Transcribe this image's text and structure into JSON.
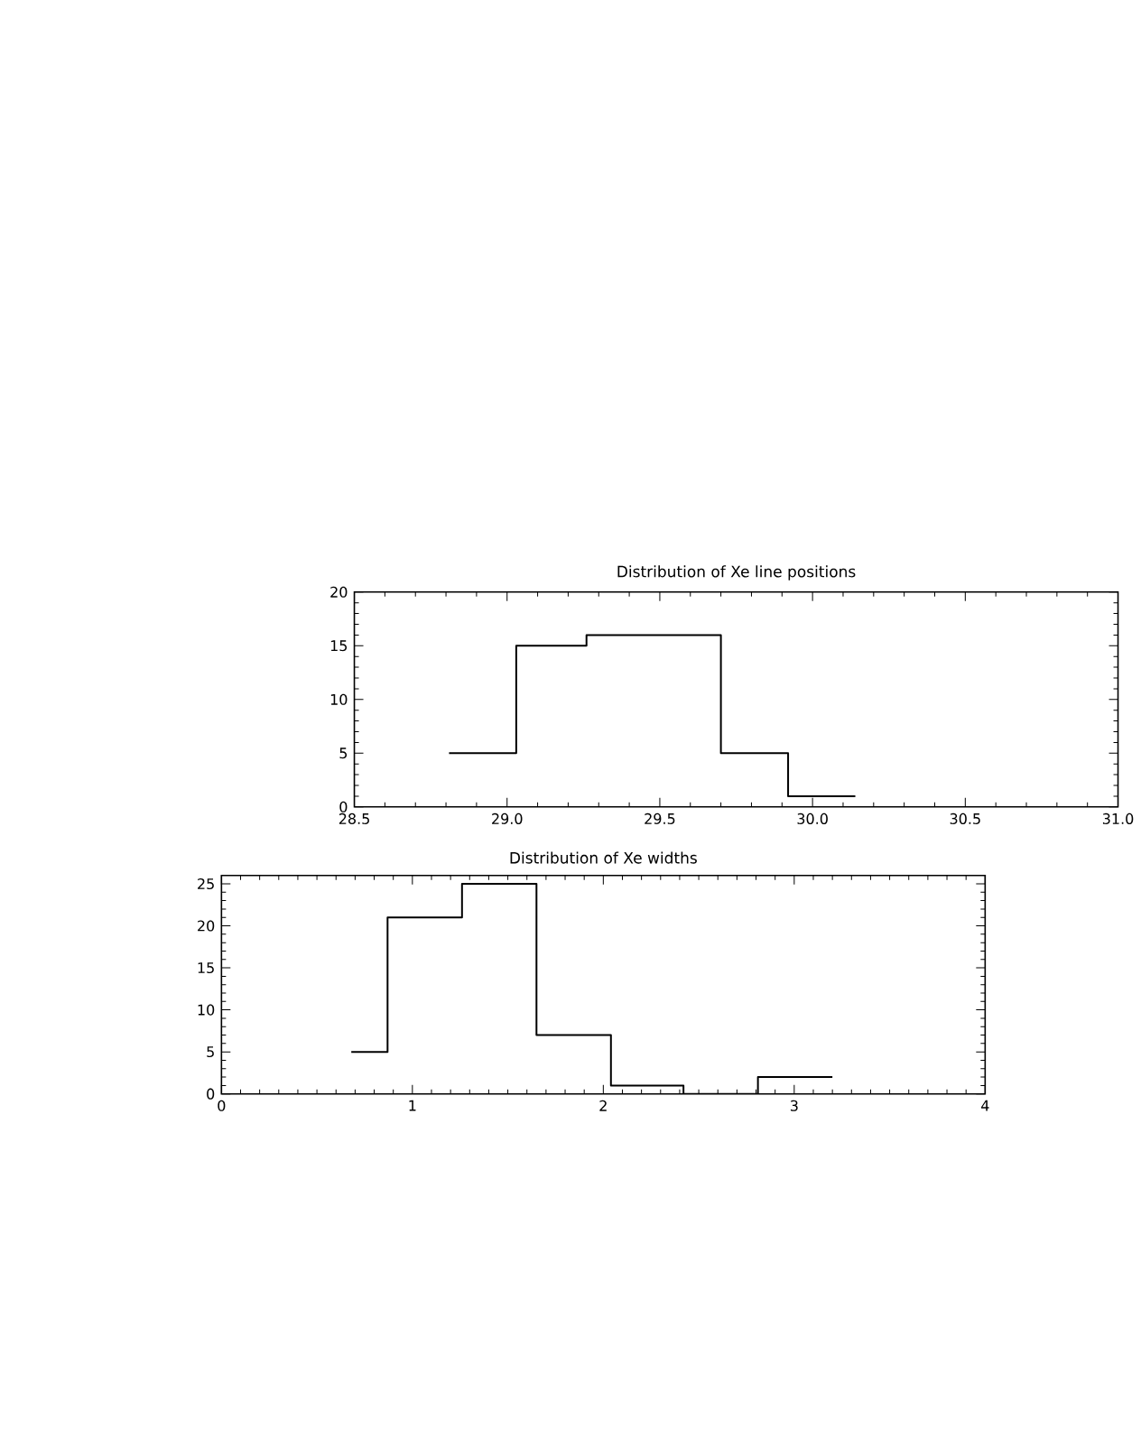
{
  "chart_data": [
    {
      "type": "histogram",
      "title": "Distribution of Xe line positions",
      "bins": [
        28.81,
        29.03,
        29.26,
        29.48,
        29.7,
        29.92,
        30.14
      ],
      "values": [
        5,
        15,
        16,
        16,
        5,
        1
      ],
      "color": "#000000",
      "xlim": [
        28.5,
        31.0
      ],
      "ylim": [
        0,
        20
      ],
      "xticks": [
        {
          "value": 28.5,
          "label": "28.5"
        },
        {
          "value": 29.0,
          "label": "29.0"
        },
        {
          "value": 29.5,
          "label": "29.5"
        },
        {
          "value": 30.0,
          "label": "30.0"
        },
        {
          "value": 30.5,
          "label": "30.5"
        },
        {
          "value": 31.0,
          "label": "31.0"
        }
      ],
      "yticks": [
        0,
        5,
        10,
        15,
        20
      ]
    },
    {
      "type": "histogram",
      "title": "Distribution of Xe widths",
      "bins": [
        0.68,
        0.87,
        1.26,
        1.65,
        2.04,
        2.42,
        2.81,
        3.2
      ],
      "values": [
        5,
        21,
        25,
        7,
        1,
        0,
        2
      ],
      "color": "#000000",
      "xlim": [
        0,
        4
      ],
      "ylim": [
        0,
        26
      ],
      "xticks": [
        0,
        1,
        2,
        3,
        4
      ],
      "yticks": [
        0,
        5,
        10,
        15,
        20,
        25
      ]
    }
  ]
}
